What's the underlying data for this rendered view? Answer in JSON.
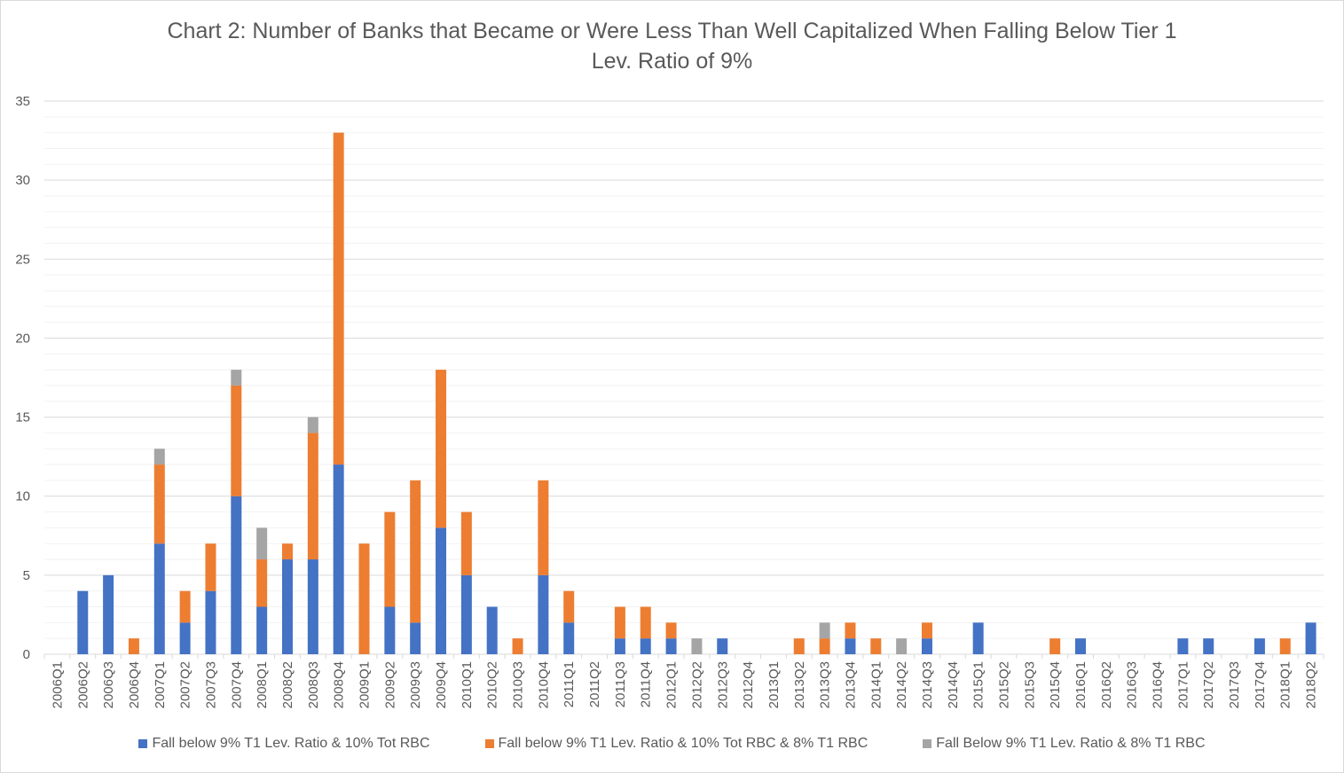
{
  "chart_data": {
    "type": "bar",
    "stacked": true,
    "title": "Chart 2: Number of Banks that Became or Were Less Than Well Capitalized When Falling Below Tier 1",
    "subtitle": "Lev. Ratio of 9%",
    "xlabel": "",
    "ylabel": "",
    "ylim": [
      0,
      35
    ],
    "yticks": [
      0,
      5,
      10,
      15,
      20,
      25,
      30,
      35
    ],
    "grid": true,
    "legend_position": "bottom",
    "categories": [
      "2006Q1",
      "2006Q2",
      "2006Q3",
      "2006Q4",
      "2007Q1",
      "2007Q2",
      "2007Q3",
      "2007Q4",
      "2008Q1",
      "2008Q2",
      "2008Q3",
      "2008Q4",
      "2009Q1",
      "2009Q2",
      "2009Q3",
      "2009Q4",
      "2010Q1",
      "2010Q2",
      "2010Q3",
      "2010Q4",
      "2011Q1",
      "2011Q2",
      "2011Q3",
      "2011Q4",
      "2012Q1",
      "2012Q2",
      "2012Q3",
      "2012Q4",
      "2013Q1",
      "2013Q2",
      "2013Q3",
      "2013Q4",
      "2014Q1",
      "2014Q2",
      "2014Q3",
      "2014Q4",
      "2015Q1",
      "2015Q2",
      "2015Q3",
      "2015Q4",
      "2016Q1",
      "2016Q2",
      "2016Q3",
      "2016Q4",
      "2017Q1",
      "2017Q2",
      "2017Q3",
      "2017Q4",
      "2018Q1",
      "2018Q2"
    ],
    "series": [
      {
        "name": "Fall below 9% T1 Lev. Ratio & 10% Tot RBC",
        "color": "#4472c4",
        "values": [
          0,
          4,
          5,
          0,
          7,
          2,
          4,
          10,
          3,
          6,
          6,
          12,
          0,
          3,
          2,
          8,
          5,
          3,
          0,
          5,
          2,
          0,
          1,
          1,
          1,
          0,
          1,
          0,
          0,
          0,
          0,
          1,
          0,
          0,
          1,
          0,
          2,
          0,
          0,
          0,
          1,
          0,
          0,
          0,
          1,
          1,
          0,
          1,
          0,
          2
        ]
      },
      {
        "name": "Fall below 9% T1 Lev. Ratio & 10% Tot RBC & 8% T1 RBC",
        "color": "#ed7d31",
        "values": [
          0,
          0,
          0,
          1,
          5,
          2,
          3,
          7,
          3,
          1,
          8,
          21,
          7,
          6,
          9,
          10,
          4,
          0,
          1,
          6,
          2,
          0,
          2,
          2,
          1,
          0,
          0,
          0,
          0,
          1,
          1,
          1,
          1,
          0,
          1,
          0,
          0,
          0,
          0,
          1,
          0,
          0,
          0,
          0,
          0,
          0,
          0,
          0,
          1,
          0
        ]
      },
      {
        "name": "Fall Below 9% T1 Lev. Ratio & 8% T1 RBC",
        "color": "#a5a5a5",
        "values": [
          0,
          0,
          0,
          0,
          1,
          0,
          0,
          1,
          2,
          0,
          1,
          0,
          0,
          0,
          0,
          0,
          0,
          0,
          0,
          0,
          0,
          0,
          0,
          0,
          0,
          1,
          0,
          0,
          0,
          0,
          1,
          0,
          0,
          1,
          0,
          0,
          0,
          0,
          0,
          0,
          0,
          0,
          0,
          0,
          0,
          0,
          0,
          0,
          0,
          0
        ]
      }
    ]
  }
}
